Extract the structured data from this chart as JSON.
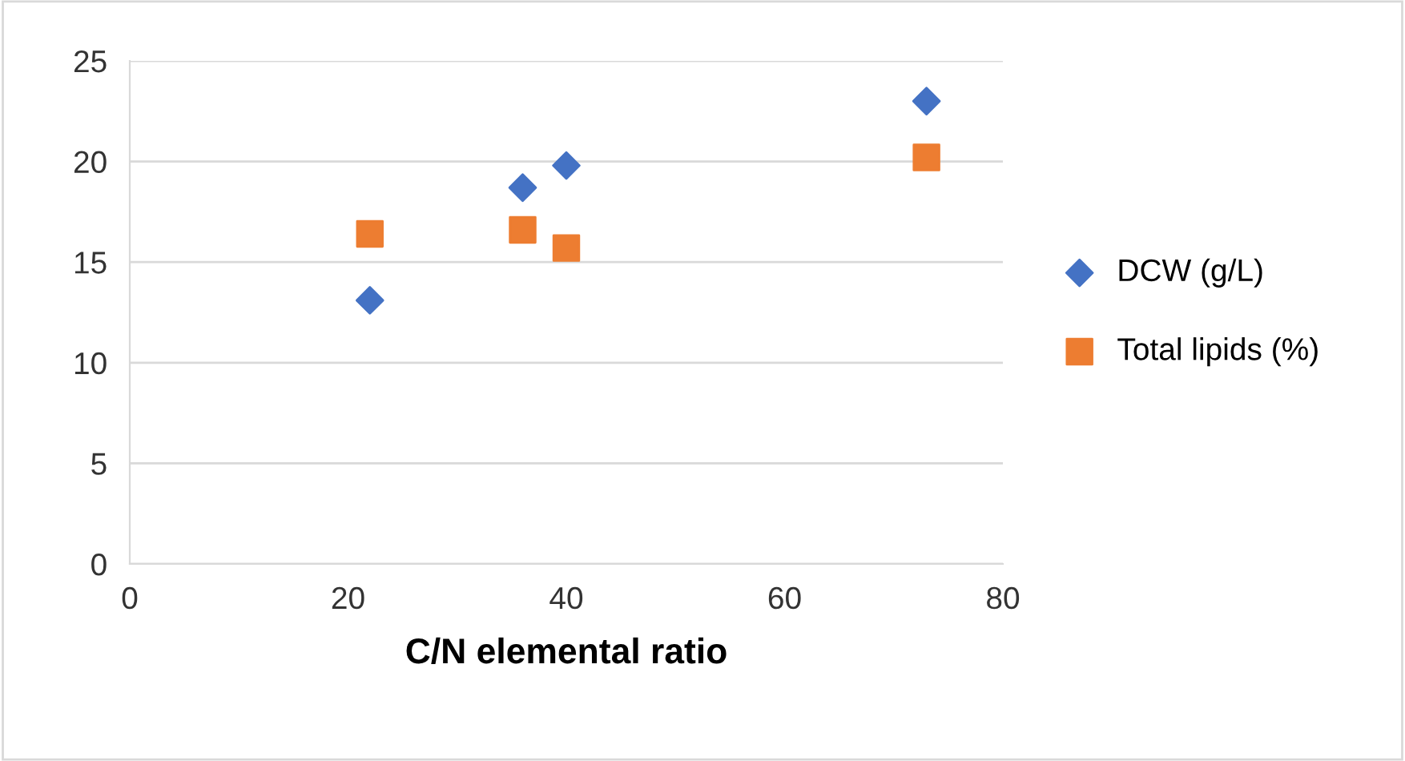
{
  "chart_data": {
    "type": "scatter",
    "xlabel": "C/N elemental ratio",
    "xlim": [
      0,
      80
    ],
    "xticks": [
      0,
      20,
      40,
      60,
      80
    ],
    "ylim": [
      0,
      25
    ],
    "yticks": [
      0,
      5,
      10,
      15,
      20,
      25
    ],
    "grid": "y",
    "legend": "right",
    "series": [
      {
        "name": "DCW (g/L)",
        "color": "#4472c4",
        "marker": "diamond",
        "x": [
          22,
          36,
          40,
          73
        ],
        "values": [
          13.1,
          18.7,
          19.8,
          23.0
        ]
      },
      {
        "name": "Total lipids (%)",
        "color": "#ed7d31",
        "marker": "square",
        "x": [
          22,
          36,
          40,
          73
        ],
        "values": [
          16.4,
          16.6,
          15.7,
          20.2
        ]
      }
    ]
  }
}
